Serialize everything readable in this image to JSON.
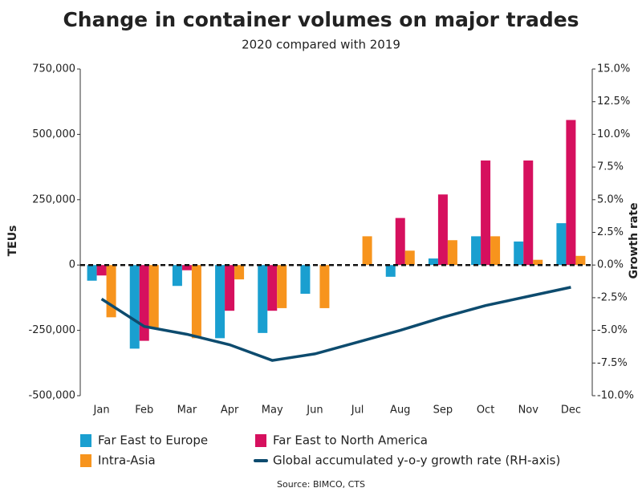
{
  "chart_data": {
    "type": "bar",
    "title": "Change in container volumes on major trades",
    "subtitle": "2020 compared with 2019",
    "y_label": "TEUs",
    "y2_label": "Growth rate",
    "source": "Source: BIMCO, CTS",
    "categories": [
      "Jan",
      "Feb",
      "Mar",
      "Apr",
      "May",
      "Jun",
      "Jul",
      "Aug",
      "Sep",
      "Oct",
      "Nov",
      "Dec"
    ],
    "series": [
      {
        "name": "Far East to Europe",
        "type": "bar",
        "color": "#1a9fd0",
        "values": [
          -60000,
          -320000,
          -80000,
          -280000,
          -260000,
          -110000,
          0,
          -45000,
          25000,
          110000,
          90000,
          160000
        ]
      },
      {
        "name": "Far East to North America",
        "type": "bar",
        "color": "#d6105e",
        "values": [
          -40000,
          -290000,
          -20000,
          -175000,
          -175000,
          0,
          0,
          180000,
          270000,
          400000,
          400000,
          555000
        ]
      },
      {
        "name": "Intra-Asia",
        "type": "bar",
        "color": "#f7941d",
        "values": [
          -200000,
          -240000,
          -280000,
          -55000,
          -165000,
          -165000,
          110000,
          55000,
          95000,
          110000,
          20000,
          35000
        ]
      },
      {
        "name": "Global accumulated y-o-y growth rate (RH-axis)",
        "type": "line",
        "axis": "y2",
        "color": "#0d4b6e",
        "values": [
          -2.6,
          -4.7,
          -5.3,
          -6.1,
          -7.3,
          -6.8,
          -5.9,
          -5.0,
          -4.0,
          -3.1,
          -2.4,
          -1.7
        ]
      }
    ],
    "ylim": [
      -500000,
      750000
    ],
    "yticks": [
      {
        "value": -500000,
        "label": "-500,000"
      },
      {
        "value": -250000,
        "label": "-250,000"
      },
      0,
      {
        "value": 250000,
        "label": "250,000"
      },
      {
        "value": 500000,
        "label": "500,000"
      },
      {
        "value": 750000,
        "label": "750,000"
      }
    ],
    "y2lim": [
      -10,
      15
    ],
    "y2ticks": [
      {
        "value": -10,
        "label": "-10.0%"
      },
      {
        "value": -7.5,
        "label": "-7.5%"
      },
      {
        "value": -5,
        "label": "-5.0%"
      },
      {
        "value": -2.5,
        "label": "-2.5%"
      },
      {
        "value": 0,
        "label": "0.0%"
      },
      {
        "value": 2.5,
        "label": "2.5%"
      },
      {
        "value": 5,
        "label": "5.0%"
      },
      {
        "value": 7.5,
        "label": "7.5%"
      },
      {
        "value": 10,
        "label": "10.0%"
      },
      {
        "value": 12.5,
        "label": "12.5%"
      },
      {
        "value": 15,
        "label": "15.0%"
      }
    ]
  }
}
